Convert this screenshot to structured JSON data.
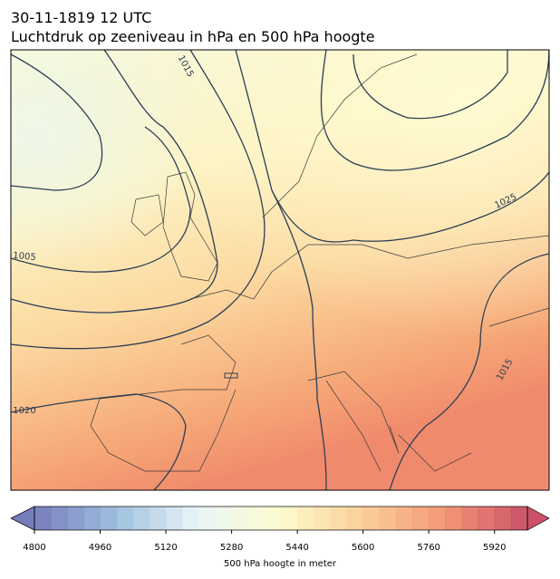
{
  "header": {
    "date": "30-11-1819 12 UTC",
    "title": "Luchtdruk op zeeniveau in hPa en 500 hPa hoogte"
  },
  "map": {
    "contour_labels": [
      1015,
      1025,
      1005,
      1020,
      1015
    ]
  },
  "colorbar": {
    "label": "500 hPa hoogte in meter",
    "range": [
      4800,
      6000
    ],
    "ticks": [
      4800,
      4960,
      5120,
      5280,
      5440,
      5600,
      5760,
      5920
    ],
    "colors": [
      "#5e66b0",
      "#8fb6d9",
      "#e6f4f6",
      "#fdf9c4",
      "#f9c788",
      "#f1855f",
      "#c2334f"
    ]
  }
}
